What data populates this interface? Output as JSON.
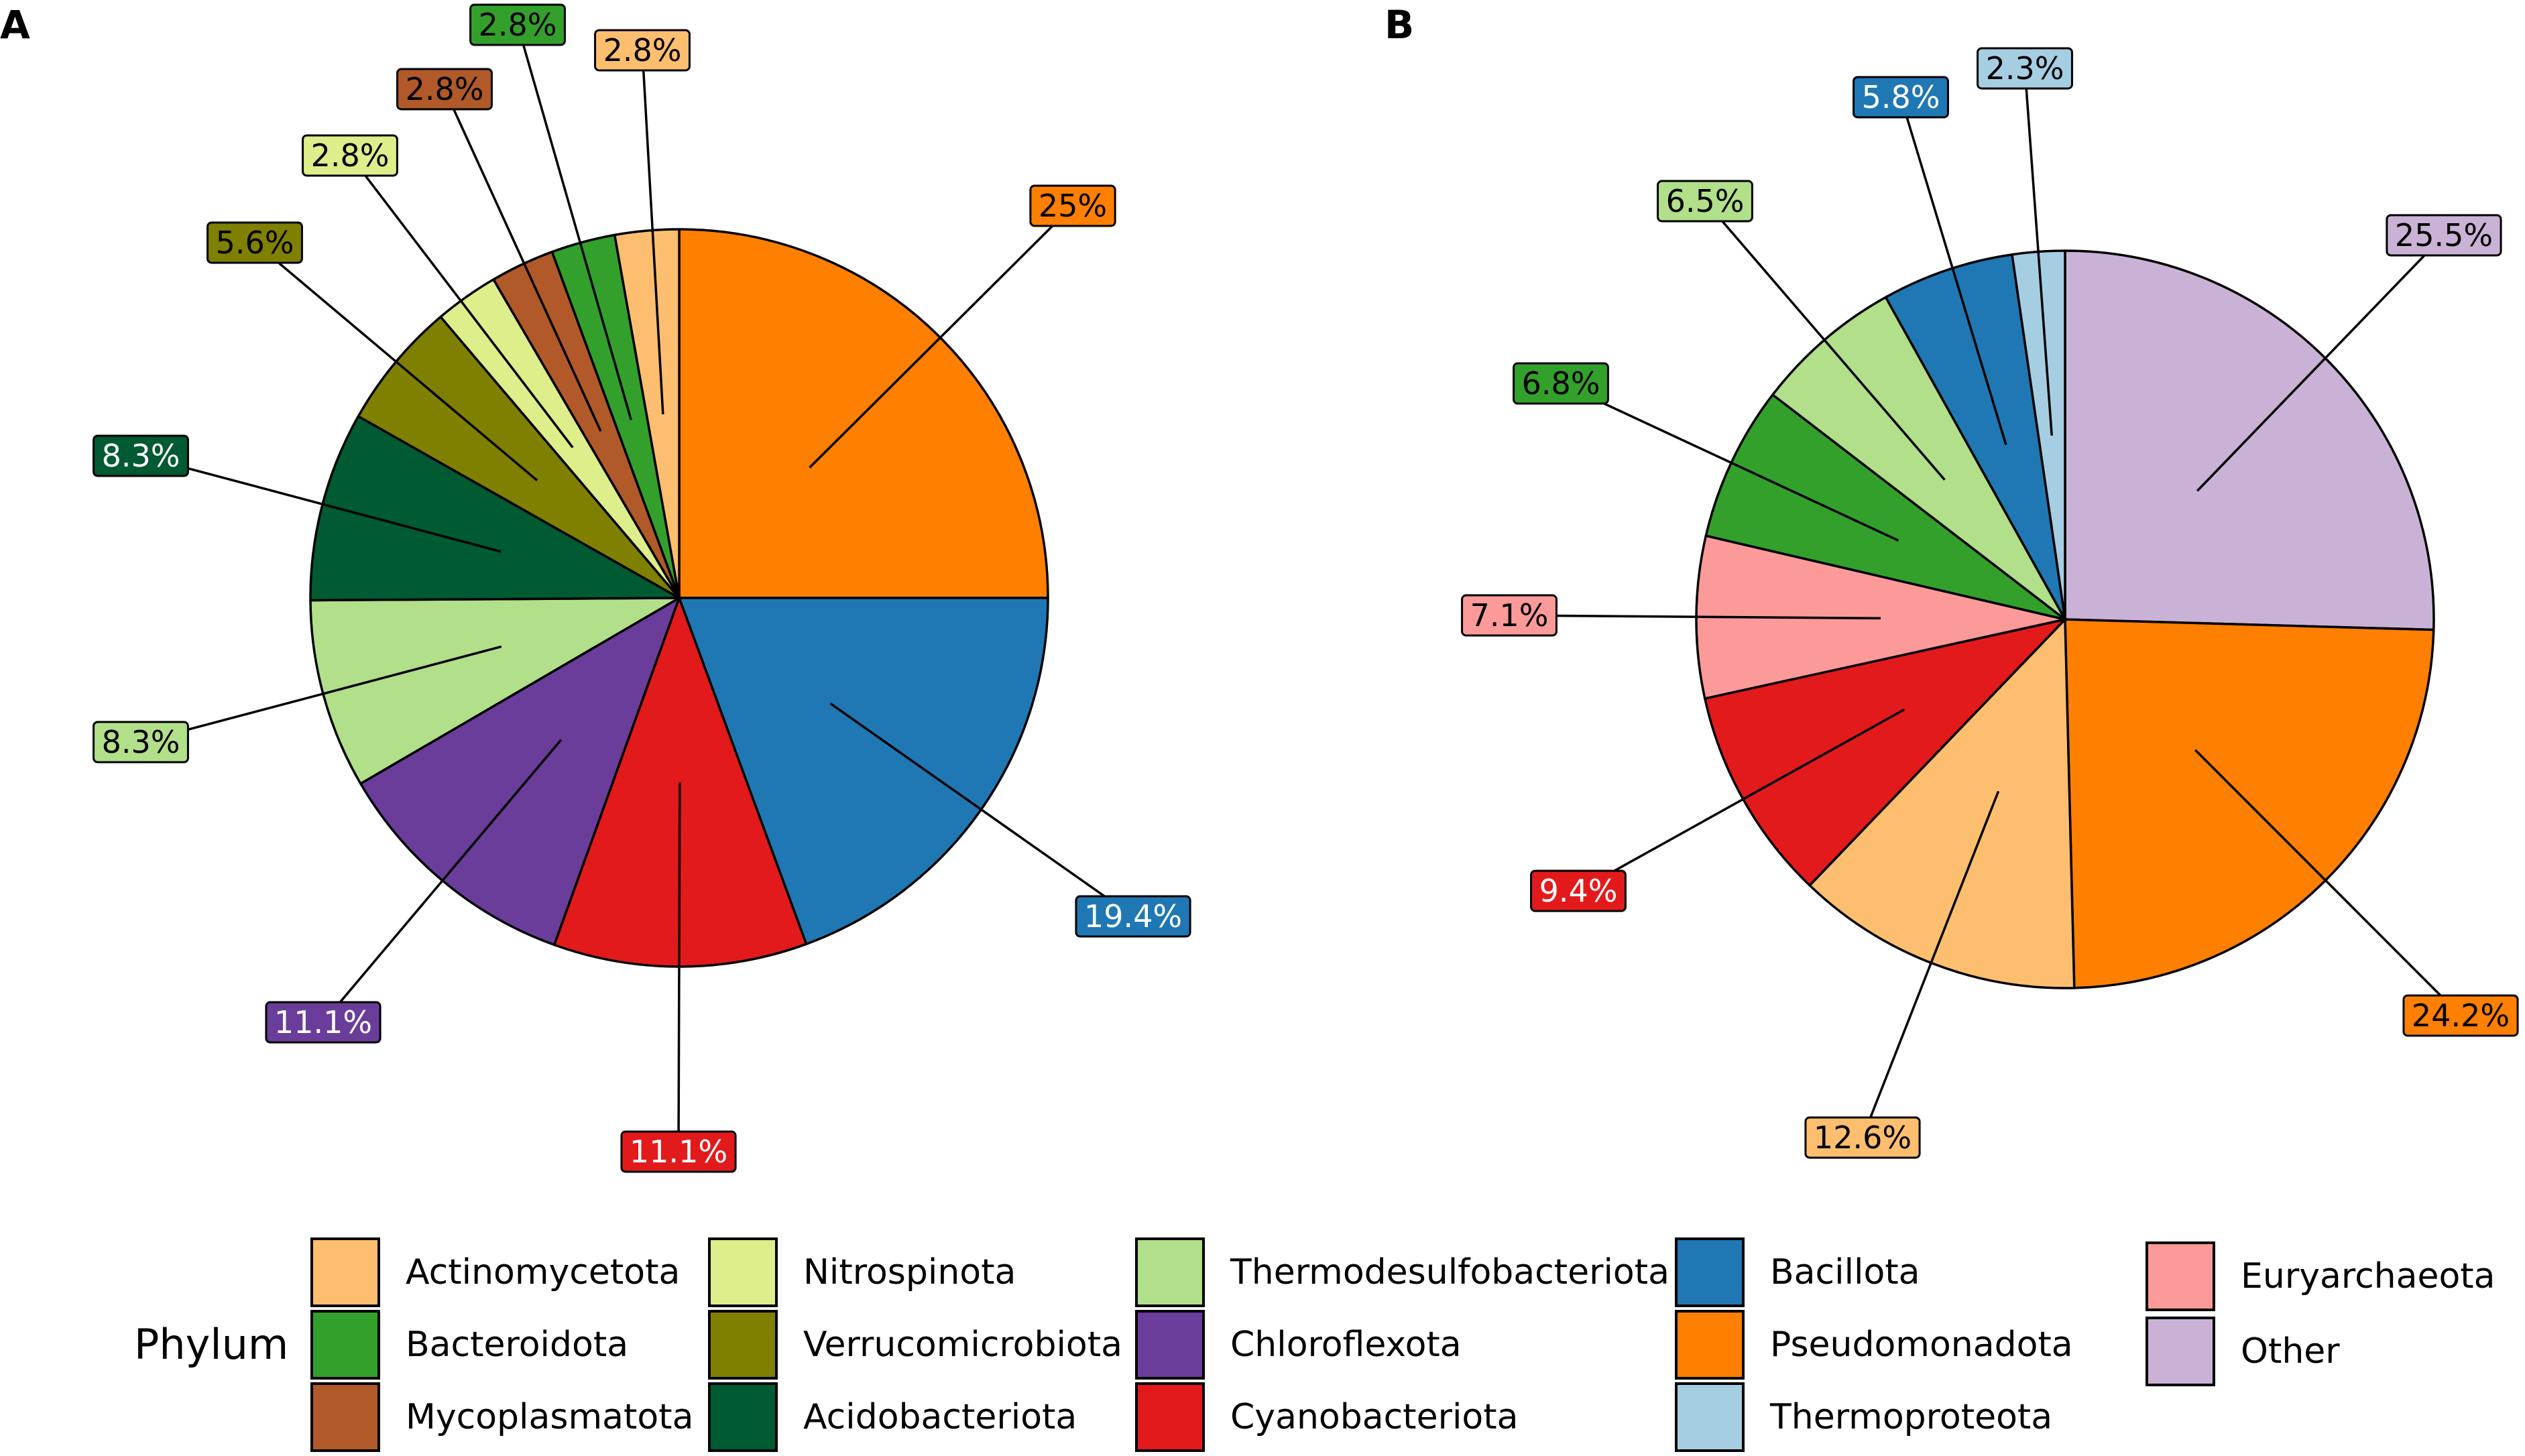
{
  "legend": {
    "title": "Phylum",
    "items": [
      {
        "name": "Actinomycetota",
        "color": "#FDBF6F"
      },
      {
        "name": "Bacteroidota",
        "color": "#33A02C"
      },
      {
        "name": "Mycoplasmatota",
        "color": "#B15928"
      },
      {
        "name": "Nitrospinota",
        "color": "#DDEE8A"
      },
      {
        "name": "Verrucomicrobiota",
        "color": "#808000"
      },
      {
        "name": "Acidobacteriota",
        "color": "#005A32"
      },
      {
        "name": "Thermodesulfobacteriota",
        "color": "#B2DF8A"
      },
      {
        "name": "Chloroflexota",
        "color": "#6A3D9A"
      },
      {
        "name": "Cyanobacteriota",
        "color": "#E31A1C"
      },
      {
        "name": "Bacillota",
        "color": "#1F78B4"
      },
      {
        "name": "Pseudomonadota",
        "color": "#FF7F00"
      },
      {
        "name": "Thermoproteota",
        "color": "#A6CEE3"
      },
      {
        "name": "Euryarchaeota",
        "color": "#FB9A99"
      },
      {
        "name": "Other",
        "color": "#CAB2D6"
      }
    ]
  },
  "chart_data": [
    {
      "type": "pie",
      "panel": "A",
      "slices": [
        {
          "name": "Pseudomonadota",
          "value": 25,
          "label": "25%"
        },
        {
          "name": "Bacillota",
          "value": 19.4,
          "label": "19.4%"
        },
        {
          "name": "Cyanobacteriota",
          "value": 11.1,
          "label": "11.1%"
        },
        {
          "name": "Chloroflexota",
          "value": 11.1,
          "label": "11.1%"
        },
        {
          "name": "Thermodesulfobacteriota",
          "value": 8.3,
          "label": "8.3%"
        },
        {
          "name": "Acidobacteriota",
          "value": 8.3,
          "label": "8.3%"
        },
        {
          "name": "Verrucomicrobiota",
          "value": 5.6,
          "label": "5.6%"
        },
        {
          "name": "Nitrospinota",
          "value": 2.8,
          "label": "2.8%"
        },
        {
          "name": "Mycoplasmatota",
          "value": 2.8,
          "label": "2.8%"
        },
        {
          "name": "Bacteroidota",
          "value": 2.8,
          "label": "2.8%"
        },
        {
          "name": "Actinomycetota",
          "value": 2.8,
          "label": "2.8%"
        }
      ]
    },
    {
      "type": "pie",
      "panel": "B",
      "slices": [
        {
          "name": "Other",
          "value": 25.5,
          "label": "25.5%"
        },
        {
          "name": "Pseudomonadota",
          "value": 24.2,
          "label": "24.2%"
        },
        {
          "name": "Actinomycetota",
          "value": 12.6,
          "label": "12.6%"
        },
        {
          "name": "Cyanobacteriota",
          "value": 9.4,
          "label": "9.4%"
        },
        {
          "name": "Euryarchaeota",
          "value": 7.1,
          "label": "7.1%"
        },
        {
          "name": "Bacteroidota",
          "value": 6.8,
          "label": "6.8%"
        },
        {
          "name": "Thermodesulfobacteriota",
          "value": 6.5,
          "label": "6.5%"
        },
        {
          "name": "Bacillota",
          "value": 5.8,
          "label": "5.8%"
        },
        {
          "name": "Thermoproteota",
          "value": 2.3,
          "label": "2.3%"
        }
      ]
    }
  ]
}
